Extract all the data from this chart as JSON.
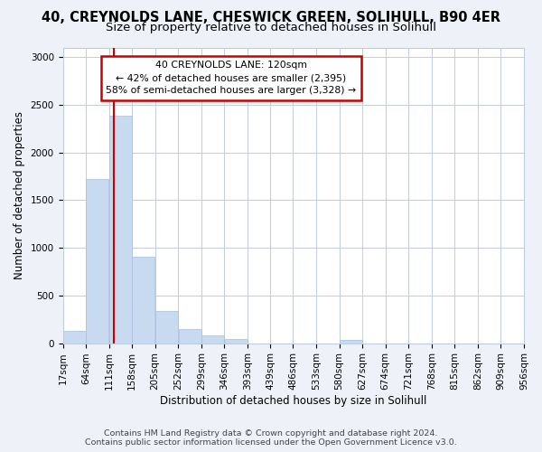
{
  "title": "40, CREYNOLDS LANE, CHESWICK GREEN, SOLIHULL, B90 4ER",
  "subtitle": "Size of property relative to detached houses in Solihull",
  "xlabel": "Distribution of detached houses by size in Solihull",
  "ylabel": "Number of detached properties",
  "bar_color": "#c8daf0",
  "bar_edge_color": "#a8bedd",
  "vline_x": 120,
  "vline_color": "#cc0000",
  "annotation_title": "40 CREYNOLDS LANE: 120sqm",
  "annotation_line1": "← 42% of detached houses are smaller (2,395)",
  "annotation_line2": "58% of semi-detached houses are larger (3,328) →",
  "annotation_box_color": "white",
  "annotation_box_edge": "#cc0000",
  "bin_edges": [
    17,
    64,
    111,
    158,
    205,
    252,
    299,
    346,
    393,
    439,
    486,
    533,
    580,
    627,
    674,
    721,
    768,
    815,
    862,
    909,
    956
  ],
  "bar_heights": [
    125,
    1720,
    2380,
    910,
    340,
    150,
    80,
    40,
    0,
    0,
    0,
    0,
    35,
    0,
    0,
    0,
    0,
    0,
    0,
    0
  ],
  "ylim": [
    0,
    3100
  ],
  "yticks": [
    0,
    500,
    1000,
    1500,
    2000,
    2500,
    3000
  ],
  "footer_line1": "Contains HM Land Registry data © Crown copyright and database right 2024.",
  "footer_line2": "Contains public sector information licensed under the Open Government Licence v3.0.",
  "background_color": "#eef2f8",
  "plot_bg_color": "white",
  "grid_color": "#c0cce0",
  "title_fontsize": 10.5,
  "subtitle_fontsize": 9.5,
  "label_fontsize": 8.5,
  "tick_fontsize": 7.5,
  "footer_fontsize": 6.8
}
